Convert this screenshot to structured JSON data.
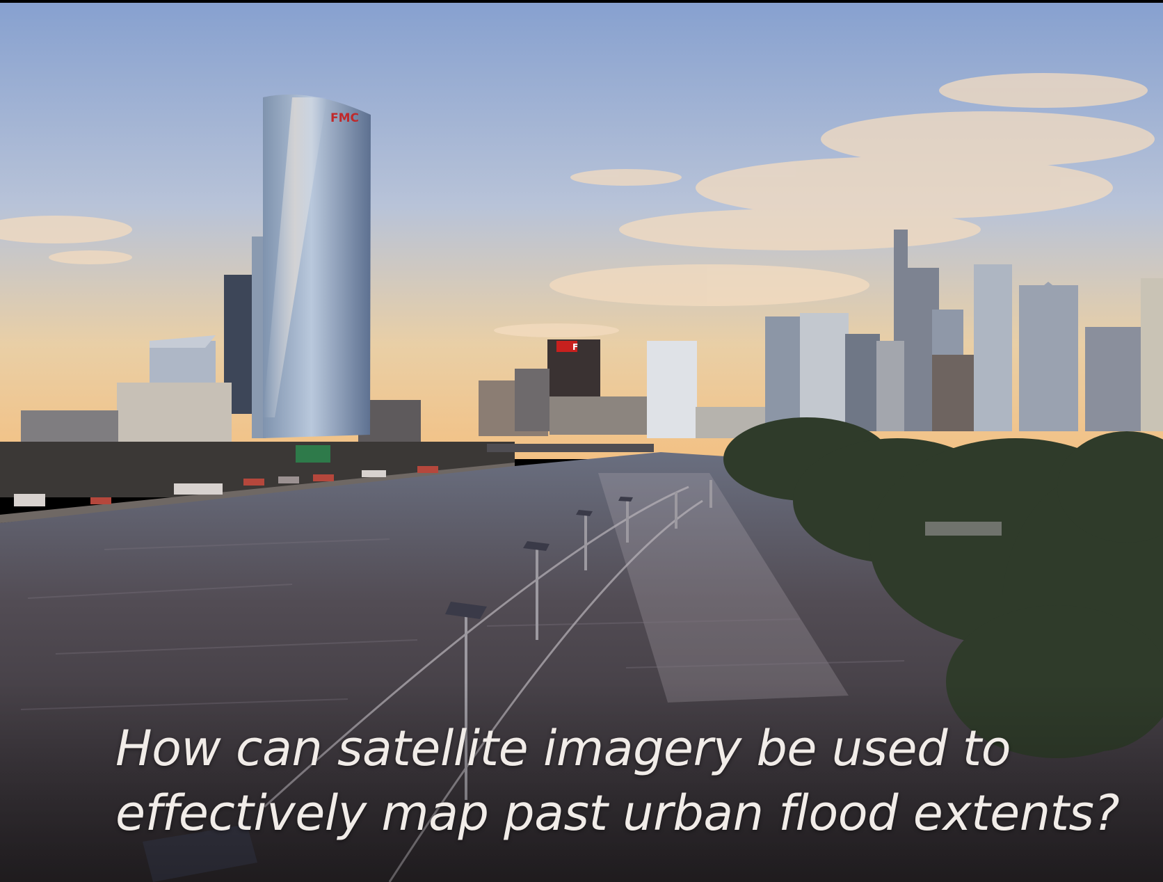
{
  "slide": {
    "caption_line1": "How can satellite imagery be used to",
    "caption_line2": "effectively map past urban flood extents?"
  },
  "scene": {
    "building_sign": "FMC",
    "small_sign": "F"
  },
  "colors": {
    "sky_top": "#8fa6d2",
    "sky_bottom": "#f1c489",
    "water": "#4b4549",
    "text": "#f1ece8"
  }
}
